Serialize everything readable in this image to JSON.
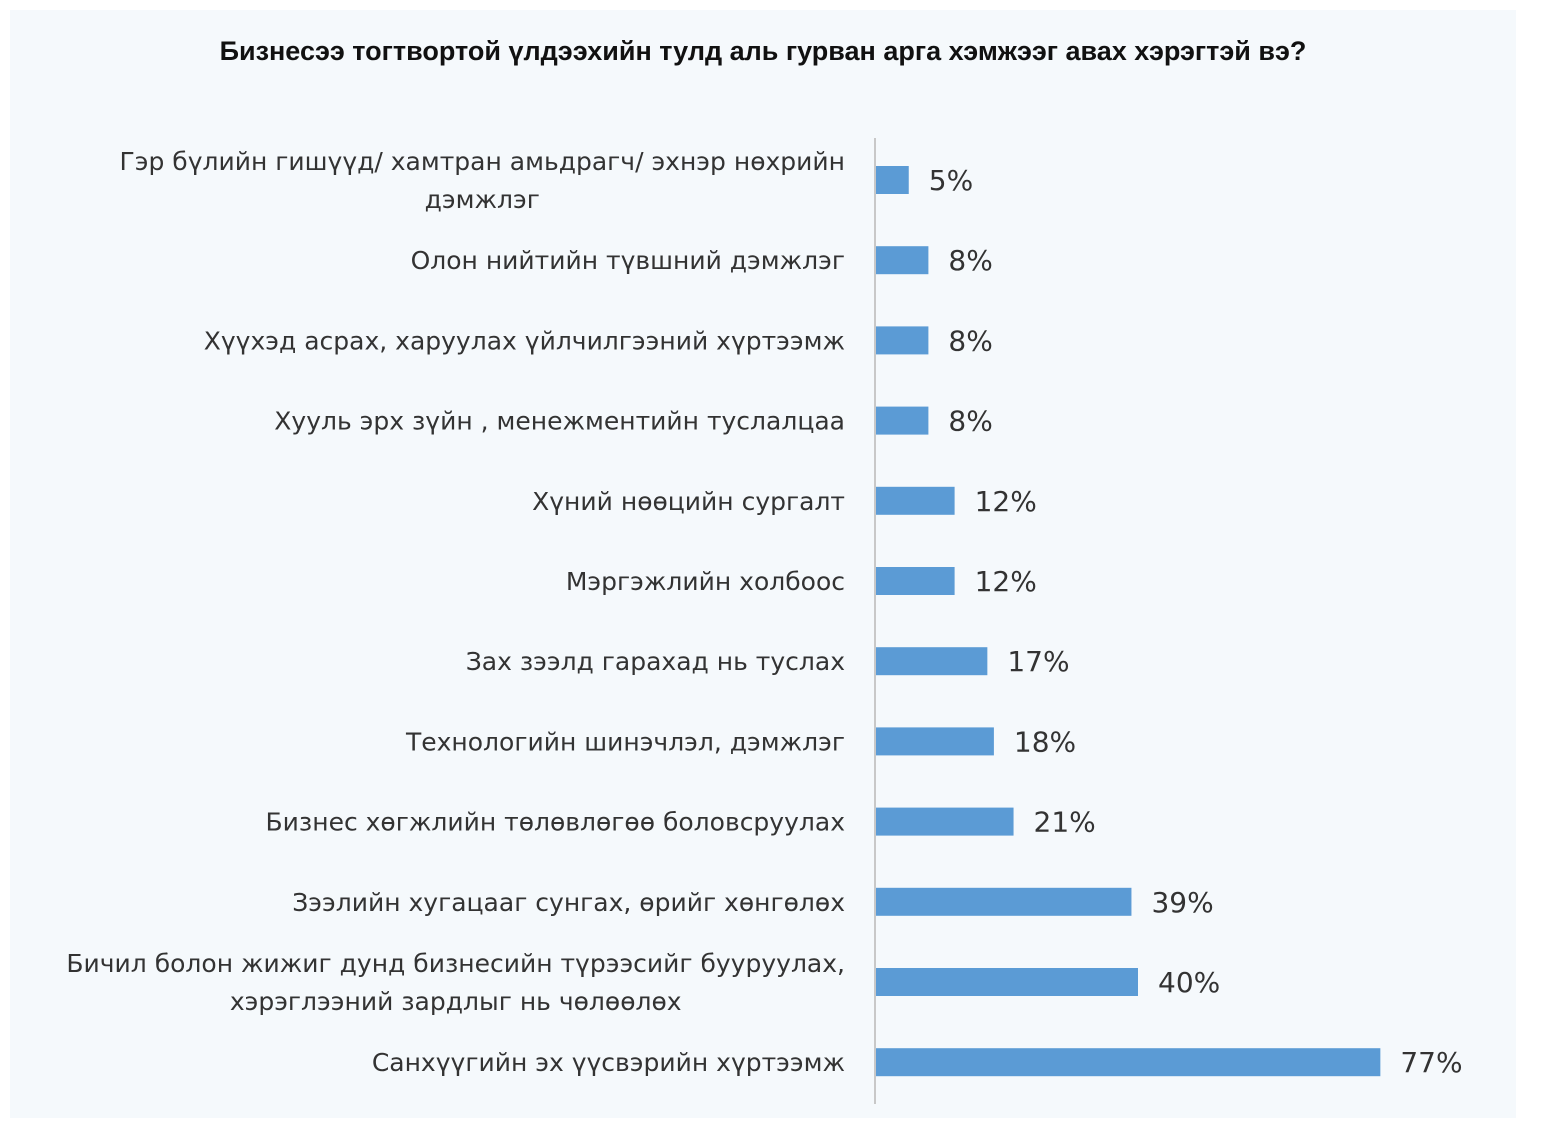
{
  "chart_data": {
    "type": "bar",
    "orientation": "horizontal",
    "title": "Бизнесээ тогтвортой үлдээхийн тулд аль гурван арга хэмжээг авах  хэрэгтэй вэ?",
    "xlabel": "",
    "ylabel": "",
    "categories": [
      [
        "Гэр бүлийн гишүүд/ хамтран амьдрагч/ эхнэр нөхрийн",
        "дэмжлэг"
      ],
      [
        "Олон нийтийн түвшний дэмжлэг"
      ],
      [
        "Хүүхэд асрах, харуулах үйлчилгээний хүртээмж"
      ],
      [
        "Хууль эрх зүйн , менежментийн туслалцаа"
      ],
      [
        "Хүний нөөцийн сургалт "
      ],
      [
        "Мэргэжлийн холбоос"
      ],
      [
        "Зах зээлд гарахад нь туслах"
      ],
      [
        "Технологийн шинэчлэл, дэмжлэг"
      ],
      [
        "Бизнес хөгжлийн төлөвлөгөө боловсруулах"
      ],
      [
        "Зээлийн хугацааг сунгах, өрийг хөнгөлөх"
      ],
      [
        "Бичил болон жижиг дунд бизнесийн түрээсийг бууруулах,",
        "хэрэглээний зардлыг нь чөлөөлөх"
      ],
      [
        "Санхүүгийн эх үүсвэрийн хүртээмж "
      ]
    ],
    "values": [
      5,
      8,
      8,
      8,
      12,
      12,
      17,
      18,
      21,
      39,
      40,
      77
    ],
    "value_labels": [
      "5%",
      "8%",
      "8%",
      "8%",
      "12%",
      "12%",
      "17%",
      "18%",
      "21%",
      "39%",
      "40%",
      "77%"
    ],
    "xlim": [
      0,
      100
    ],
    "unit": "%",
    "bar_color": "#5b9bd5",
    "axis_color": "#c8c8c8",
    "grid": false,
    "legend": "none"
  }
}
